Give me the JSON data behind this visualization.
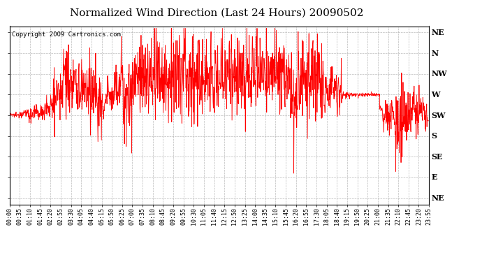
{
  "title": "Normalized Wind Direction (Last 24 Hours) 20090502",
  "copyright": "Copyright 2009 Cartronics.com",
  "line_color": "#FF0000",
  "bg_color": "#FFFFFF",
  "plot_bg_color": "#FFFFFF",
  "grid_color": "#AAAAAA",
  "grid_style": "--",
  "ytick_labels": [
    "NE",
    "N",
    "NW",
    "W",
    "SW",
    "S",
    "SE",
    "E",
    "NE"
  ],
  "ytick_values": [
    8,
    7,
    6,
    5,
    4,
    3,
    2,
    1,
    0
  ],
  "xtick_labels": [
    "00:00",
    "00:35",
    "01:10",
    "01:45",
    "02:20",
    "02:55",
    "03:30",
    "04:05",
    "04:40",
    "05:15",
    "05:50",
    "06:25",
    "07:00",
    "07:35",
    "08:10",
    "08:45",
    "09:20",
    "09:55",
    "10:30",
    "11:05",
    "11:40",
    "12:15",
    "12:50",
    "13:25",
    "14:00",
    "14:35",
    "15:10",
    "15:45",
    "16:20",
    "16:55",
    "17:30",
    "18:05",
    "18:40",
    "19:15",
    "19:50",
    "20:25",
    "21:00",
    "21:35",
    "22:10",
    "22:45",
    "23:20",
    "23:55"
  ],
  "ylim": [
    -0.3,
    8.3
  ],
  "xlim": [
    0,
    41
  ],
  "title_fontsize": 11,
  "copyright_fontsize": 6.5,
  "tick_fontsize": 6,
  "ytick_fontsize": 8
}
